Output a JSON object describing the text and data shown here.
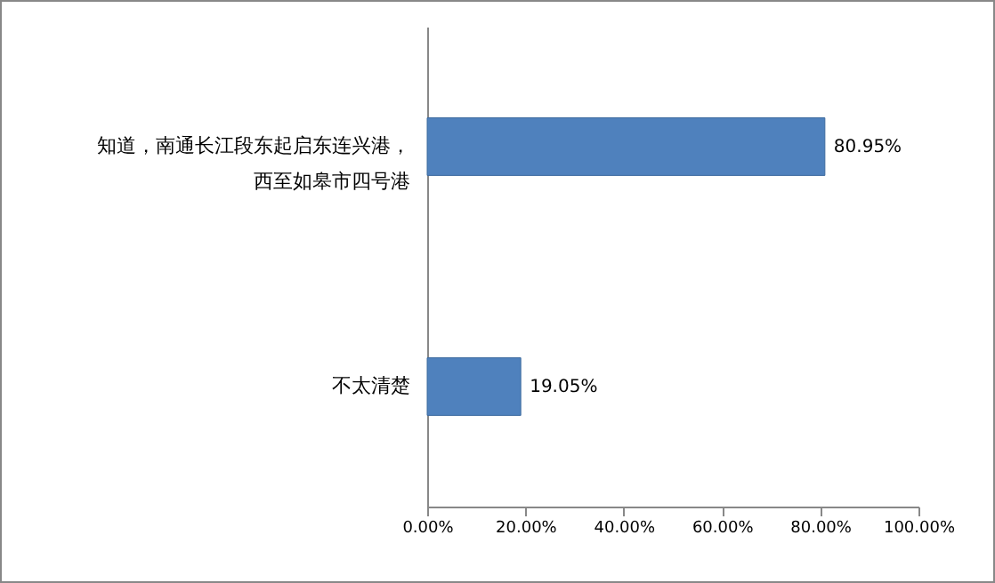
{
  "chart_data": {
    "type": "bar",
    "orientation": "horizontal",
    "categories": [
      "知道，南通长江段东起启东连兴港，西至如皋市四号港",
      "不太清楚"
    ],
    "values": [
      80.95,
      19.05
    ],
    "value_labels": [
      "80.95%",
      "19.05%"
    ],
    "color": "#4f81bd",
    "xlim": [
      0,
      100
    ],
    "xticks": [
      {
        "value": 0,
        "label": "0.00%"
      },
      {
        "value": 20,
        "label": "20.00%"
      },
      {
        "value": 40,
        "label": "40.00%"
      },
      {
        "value": 60,
        "label": "60.00%"
      },
      {
        "value": 80,
        "label": "80.00%"
      },
      {
        "value": 100,
        "label": "100.00%"
      }
    ],
    "grid": false
  }
}
